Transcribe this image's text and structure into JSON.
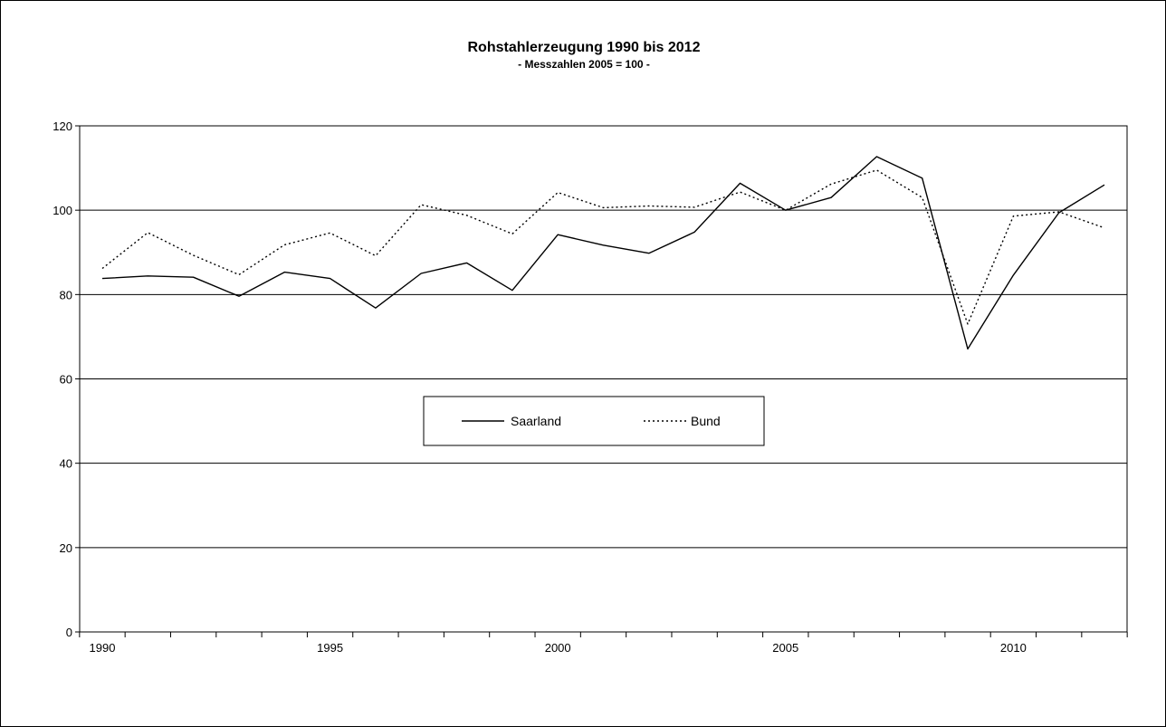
{
  "chart_data": {
    "type": "line",
    "title": "Rohstahlerzeugung 1990 bis 2012",
    "subtitle": "- Messzahlen 2005 = 100 -",
    "xlabel": "",
    "ylabel": "",
    "x": [
      1990,
      1991,
      1992,
      1993,
      1994,
      1995,
      1996,
      1997,
      1998,
      1999,
      2000,
      2001,
      2002,
      2003,
      2004,
      2005,
      2006,
      2007,
      2008,
      2009,
      2010,
      2011,
      2012
    ],
    "x_tick_labels": [
      "1990",
      "1995",
      "2000",
      "2005",
      "2010"
    ],
    "y_ticks": [
      0,
      20,
      40,
      60,
      80,
      100,
      120
    ],
    "y_tick_labels": [
      "0",
      "20",
      "40",
      "60",
      "80",
      "100",
      "120"
    ],
    "ylim": [
      0,
      120
    ],
    "grid": "horizontal",
    "legend_position": "center",
    "series": [
      {
        "name": "Saarland",
        "style": "solid",
        "color": "#000000",
        "values": [
          83.8,
          84.4,
          84.1,
          79.6,
          85.3,
          83.8,
          76.8,
          85.0,
          87.5,
          81.0,
          94.2,
          91.7,
          89.8,
          94.8,
          106.4,
          100.0,
          103.0,
          112.7,
          107.6,
          67.1,
          84.6,
          99.4,
          106.0
        ]
      },
      {
        "name": "Bund",
        "style": "dotted",
        "color": "#000000",
        "values": [
          86.2,
          94.7,
          89.3,
          84.7,
          91.8,
          94.6,
          89.2,
          101.3,
          98.8,
          94.4,
          104.2,
          100.6,
          101.0,
          100.7,
          104.3,
          100.0,
          106.2,
          109.5,
          103.0,
          73.0,
          98.6,
          99.6,
          95.8
        ]
      }
    ]
  }
}
